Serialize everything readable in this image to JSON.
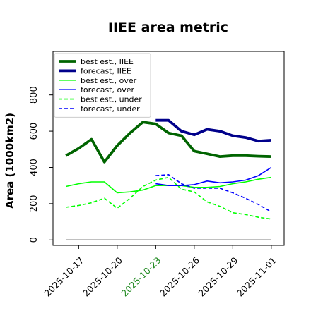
{
  "chart_data": {
    "type": "line",
    "title": "IIEE area metric",
    "xlabel": "",
    "ylabel": "Area (1000km2)",
    "ylim": [
      -30,
      1040
    ],
    "xlim": [
      "2025-10-15",
      "2025-11-02"
    ],
    "grid": false,
    "legend_position": "top-left",
    "highlighted_tick": "2025-10-23",
    "highlight_color": "#228b22",
    "x": [
      "2025-10-16",
      "2025-10-17",
      "2025-10-18",
      "2025-10-19",
      "2025-10-20",
      "2025-10-21",
      "2025-10-22",
      "2025-10-23",
      "2025-10-24",
      "2025-10-25",
      "2025-10-26",
      "2025-10-27",
      "2025-10-28",
      "2025-10-29",
      "2025-10-30",
      "2025-10-31",
      "2025-11-01"
    ],
    "x_ticks": [
      "2025-10-17",
      "2025-10-20",
      "2025-10-23",
      "2025-10-26",
      "2025-10-29",
      "2025-11-01"
    ],
    "y_ticks": [
      0,
      200,
      400,
      600,
      800
    ],
    "baseline": {
      "value": 0,
      "color": "#808080"
    },
    "series": [
      {
        "name": "best est., IIEE",
        "color": "#006400",
        "dash": "solid",
        "width": "thick",
        "values": [
          465,
          505,
          555,
          430,
          520,
          590,
          650,
          640,
          590,
          575,
          490,
          475,
          460,
          465,
          465,
          462,
          460
        ]
      },
      {
        "name": "forecast, IIEE",
        "color": "#00008b",
        "dash": "solid",
        "width": "thick",
        "x": [
          "2025-10-23",
          "2025-10-24",
          "2025-10-25",
          "2025-10-26",
          "2025-10-27",
          "2025-10-28",
          "2025-10-29",
          "2025-10-30",
          "2025-10-31",
          "2025-11-01"
        ],
        "values": [
          660,
          660,
          600,
          580,
          610,
          600,
          575,
          565,
          545,
          550
        ]
      },
      {
        "name": "best est., over",
        "color": "#00ff00",
        "dash": "solid",
        "width": "thin",
        "values": [
          295,
          310,
          320,
          320,
          260,
          265,
          275,
          300,
          300,
          300,
          290,
          290,
          295,
          310,
          320,
          335,
          345
        ]
      },
      {
        "name": "forecast, over",
        "color": "#0000ff",
        "dash": "solid",
        "width": "thin",
        "x": [
          "2025-10-23",
          "2025-10-24",
          "2025-10-25",
          "2025-10-26",
          "2025-10-27",
          "2025-10-28",
          "2025-10-29",
          "2025-10-30",
          "2025-10-31",
          "2025-11-01"
        ],
        "values": [
          310,
          300,
          300,
          305,
          325,
          315,
          320,
          330,
          355,
          400
        ]
      },
      {
        "name": "best est., under",
        "color": "#00ff00",
        "dash": "dashed",
        "width": "thin",
        "values": [
          180,
          190,
          205,
          230,
          175,
          230,
          295,
          330,
          345,
          280,
          265,
          210,
          185,
          150,
          140,
          125,
          115
        ]
      },
      {
        "name": "forecast, under",
        "color": "#0000ff",
        "dash": "dashed",
        "width": "thin",
        "x": [
          "2025-10-23",
          "2025-10-24",
          "2025-10-25",
          "2025-10-26",
          "2025-10-27",
          "2025-10-28",
          "2025-10-29",
          "2025-10-30",
          "2025-10-31",
          "2025-11-01"
        ],
        "values": [
          355,
          360,
          310,
          285,
          285,
          285,
          260,
          230,
          195,
          155
        ]
      }
    ]
  }
}
